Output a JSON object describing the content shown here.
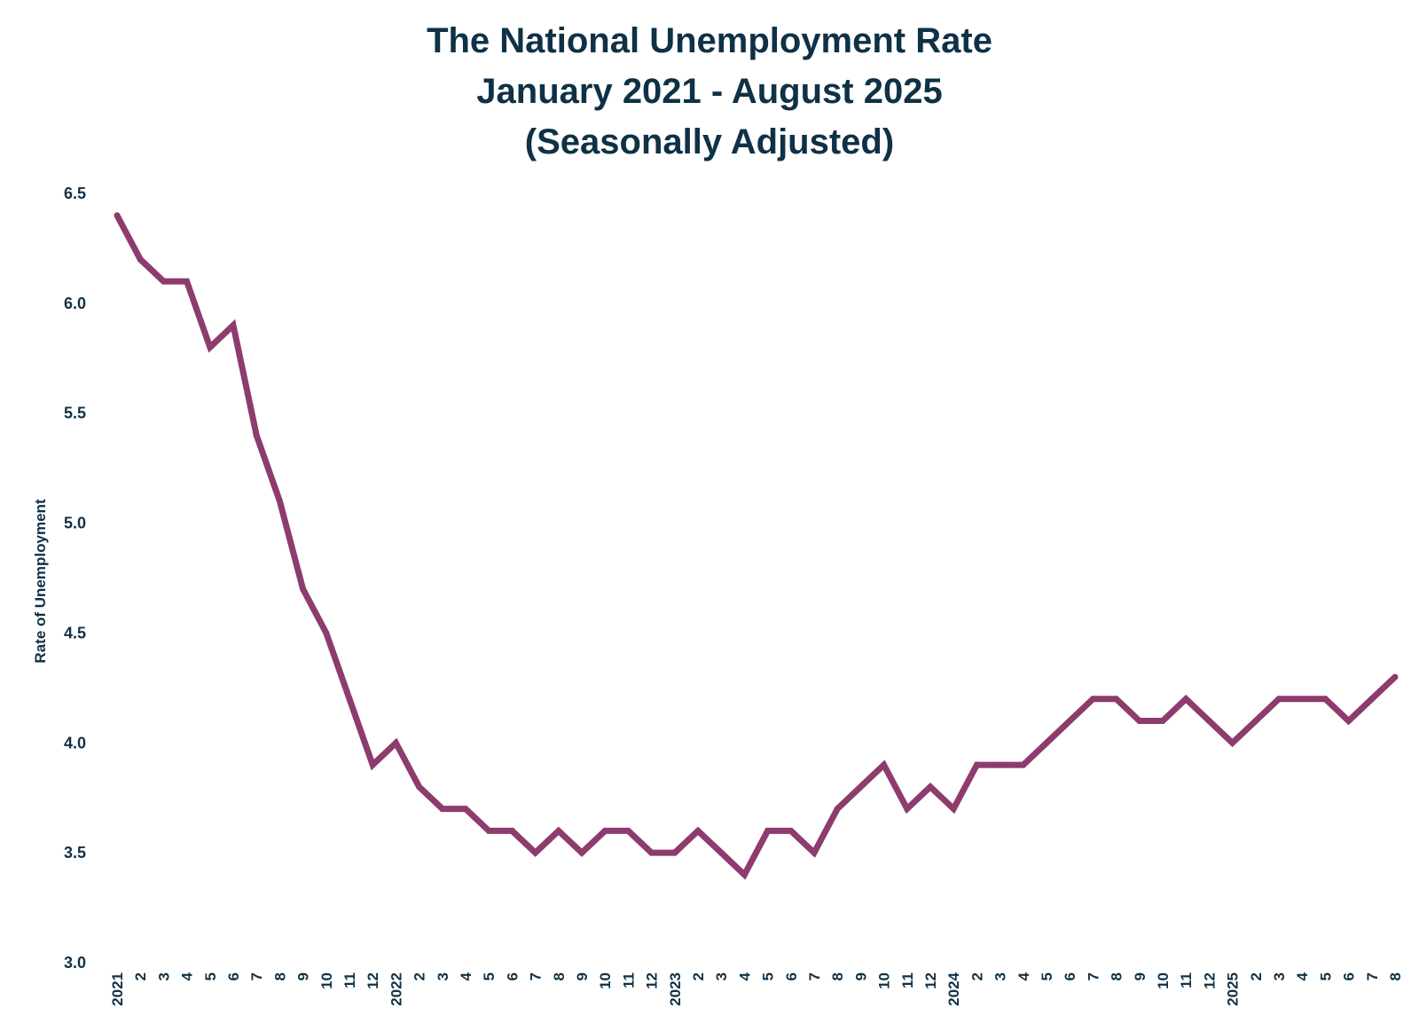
{
  "chart_data": {
    "type": "line",
    "title": [
      "The National Unemployment Rate",
      "January 2021 - August 2025",
      "(Seasonally Adjusted)"
    ],
    "ylabel": "Rate of Unemployment",
    "xlabel": "",
    "ylim": [
      3.0,
      6.5
    ],
    "yticks": [
      "3.0",
      "3.5",
      "4.0",
      "4.5",
      "5.0",
      "5.5",
      "6.0",
      "6.5"
    ],
    "grid": false,
    "line_color": "#8e3b6e",
    "text_color": "#0f3146",
    "categories": [
      "2021",
      "2",
      "3",
      "4",
      "5",
      "6",
      "7",
      "8",
      "9",
      "10",
      "11",
      "12",
      "2022",
      "2",
      "3",
      "4",
      "5",
      "6",
      "7",
      "8",
      "9",
      "10",
      "11",
      "12",
      "2023",
      "2",
      "3",
      "4",
      "5",
      "6",
      "7",
      "8",
      "9",
      "10",
      "11",
      "12",
      "2024",
      "2",
      "3",
      "4",
      "5",
      "6",
      "7",
      "8",
      "9",
      "10",
      "11",
      "12",
      "2025",
      "2",
      "3",
      "4",
      "5",
      "6",
      "7",
      "8"
    ],
    "values": [
      6.4,
      6.2,
      6.1,
      6.1,
      5.8,
      5.9,
      5.4,
      5.1,
      4.7,
      4.5,
      4.2,
      3.9,
      4.0,
      3.8,
      3.7,
      3.7,
      3.6,
      3.6,
      3.5,
      3.6,
      3.5,
      3.6,
      3.6,
      3.5,
      3.5,
      3.6,
      3.5,
      3.4,
      3.6,
      3.6,
      3.5,
      3.7,
      3.8,
      3.9,
      3.7,
      3.8,
      3.7,
      3.9,
      3.9,
      3.9,
      4.0,
      4.1,
      4.2,
      4.2,
      4.1,
      4.1,
      4.2,
      4.1,
      4.0,
      4.1,
      4.2,
      4.2,
      4.2,
      4.1,
      4.2,
      4.3
    ]
  }
}
